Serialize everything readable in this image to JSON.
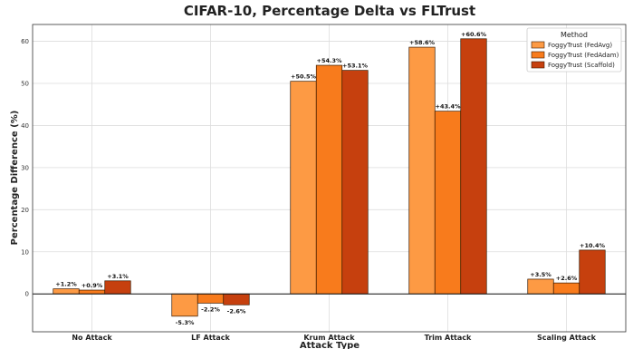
{
  "chart_data": {
    "type": "bar",
    "title": "CIFAR-10, Percentage Delta vs FLTrust",
    "xlabel": "Attack Type",
    "ylabel": "Percentage Difference (%)",
    "ylim": [
      -9,
      64
    ],
    "yticks": [
      0,
      10,
      20,
      30,
      40,
      50,
      60
    ],
    "grid": true,
    "legend": {
      "title": "Method",
      "placement": "top-right"
    },
    "categories": [
      "No Attack",
      "LF Attack",
      "Krum Attack",
      "Trim Attack",
      "Scaling Attack"
    ],
    "series": [
      {
        "name": "FoggyTrust (FedAvg)",
        "color": "#fd9a44",
        "values": [
          1.2,
          -5.3,
          50.5,
          58.6,
          3.5
        ],
        "labels": [
          "+1.2%",
          "-5.3%",
          "+50.5%",
          "+58.6%",
          "+3.5%"
        ]
      },
      {
        "name": "FoggyTrust (FedAdam)",
        "color": "#f87b1c",
        "values": [
          0.9,
          -2.2,
          54.3,
          43.4,
          2.6
        ],
        "labels": [
          "+0.9%",
          "-2.2%",
          "+54.3%",
          "+43.4%",
          "+2.6%"
        ]
      },
      {
        "name": "FoggyTrust (Scaffold)",
        "color": "#c6400e",
        "values": [
          3.1,
          -2.6,
          53.1,
          60.6,
          10.4
        ],
        "labels": [
          "+3.1%",
          "-2.6%",
          "+53.1%",
          "+60.6%",
          "+10.4%"
        ]
      }
    ]
  }
}
